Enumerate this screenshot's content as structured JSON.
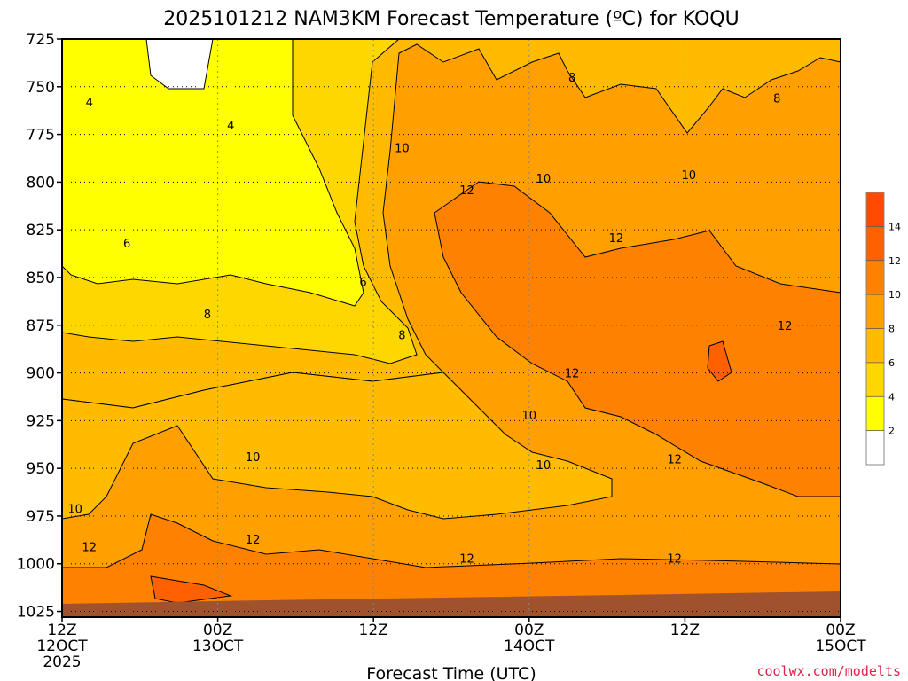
{
  "chart_data": {
    "type": "heatmap",
    "title": "2025101212 NAM3KM Forecast Temperature (ºC) for KOQU",
    "xlabel": "Forecast Time (UTC)",
    "ylabel": "",
    "credit": "coolwx.com/modelts",
    "y_ticks": [
      "725",
      "750",
      "775",
      "800",
      "825",
      "850",
      "875",
      "900",
      "925",
      "950",
      "975",
      "1000",
      "1025"
    ],
    "y_range": [
      725,
      1028
    ],
    "x_ticks": [
      {
        "hours": 0,
        "l1": "12Z",
        "l2": "12OCT",
        "l3": "2025"
      },
      {
        "hours": 12,
        "l1": "00Z",
        "l2": "13OCT",
        "l3": ""
      },
      {
        "hours": 24,
        "l1": "12Z",
        "l2": "",
        "l3": ""
      },
      {
        "hours": 36,
        "l1": "00Z",
        "l2": "14OCT",
        "l3": ""
      },
      {
        "hours": 48,
        "l1": "12Z",
        "l2": "",
        "l3": ""
      },
      {
        "hours": 60,
        "l1": "00Z",
        "l2": "15OCT",
        "l3": ""
      }
    ],
    "colorbar": {
      "levels": [
        2,
        4,
        6,
        8,
        10,
        12,
        14
      ],
      "labels": [
        "2",
        "4",
        "6",
        "8",
        "10",
        "12",
        "14"
      ],
      "colors": [
        "#ffffff",
        "#ffff00",
        "#ffd700",
        "#ffbb00",
        "#ff9f00",
        "#ff8100",
        "#ff6000",
        "#ff4a00"
      ]
    },
    "contour_labels": [
      {
        "text": "4",
        "hours": 2.1,
        "p": 758
      },
      {
        "text": "4",
        "hours": 13.0,
        "p": 770
      },
      {
        "text": "6",
        "hours": 5.0,
        "p": 832
      },
      {
        "text": "6",
        "hours": 23.2,
        "p": 852
      },
      {
        "text": "8",
        "hours": 11.2,
        "p": 869
      },
      {
        "text": "8",
        "hours": 26.2,
        "p": 880
      },
      {
        "text": "8",
        "hours": 39.3,
        "p": 745
      },
      {
        "text": "8",
        "hours": 55.1,
        "p": 756
      },
      {
        "text": "10",
        "hours": 26.2,
        "p": 782
      },
      {
        "text": "10",
        "hours": 37.1,
        "p": 798
      },
      {
        "text": "10",
        "hours": 48.3,
        "p": 796
      },
      {
        "text": "10",
        "hours": 36.0,
        "p": 922
      },
      {
        "text": "10",
        "hours": 14.7,
        "p": 944
      },
      {
        "text": "10",
        "hours": 37.1,
        "p": 948
      },
      {
        "text": "10",
        "hours": 1.0,
        "p": 971
      },
      {
        "text": "12",
        "hours": 31.2,
        "p": 804
      },
      {
        "text": "12",
        "hours": 42.7,
        "p": 829
      },
      {
        "text": "12",
        "hours": 39.3,
        "p": 900
      },
      {
        "text": "12",
        "hours": 55.7,
        "p": 875
      },
      {
        "text": "12",
        "hours": 47.2,
        "p": 945
      },
      {
        "text": "12",
        "hours": 14.7,
        "p": 987
      },
      {
        "text": "12",
        "hours": 2.1,
        "p": 991
      },
      {
        "text": "12",
        "hours": 31.2,
        "p": 997
      },
      {
        "text": "12",
        "hours": 47.2,
        "p": 997
      }
    ]
  }
}
